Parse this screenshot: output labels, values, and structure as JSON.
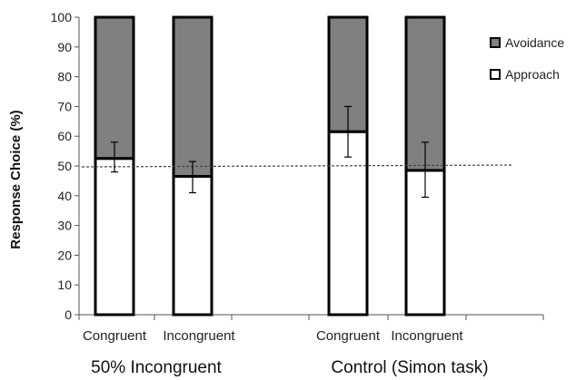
{
  "chart_data": {
    "type": "bar",
    "stacked": true,
    "ylabel": "Response  Choice  (%)",
    "ylim": [
      0,
      100
    ],
    "yticks": [
      "0",
      "10",
      "20",
      "30",
      "40",
      "50",
      "60",
      "70",
      "80",
      "90",
      "100"
    ],
    "categories": [
      "Congruent",
      "Incongruent",
      "Congruent",
      "Incongruent"
    ],
    "groups": [
      "50% Incongruent",
      "Control (Simon task)"
    ],
    "series": [
      {
        "name": "Approach",
        "color": "#ffffff",
        "values": [
          52.5,
          46.5,
          61.5,
          48.5
        ]
      },
      {
        "name": "Avoidance",
        "color": "#808080",
        "values": [
          47.5,
          53.5,
          38.5,
          51.5
        ]
      }
    ],
    "error_bars": {
      "center": [
        52.5,
        46.5,
        61.5,
        48.5
      ],
      "low": [
        48,
        41,
        53,
        39.5
      ],
      "high": [
        58,
        51.5,
        70,
        58
      ]
    },
    "reference_line": {
      "y": 50,
      "style": "dashed"
    },
    "legend": {
      "placement": "top-right",
      "entries": [
        "Avoidance",
        "Approach"
      ]
    },
    "grid": false
  }
}
